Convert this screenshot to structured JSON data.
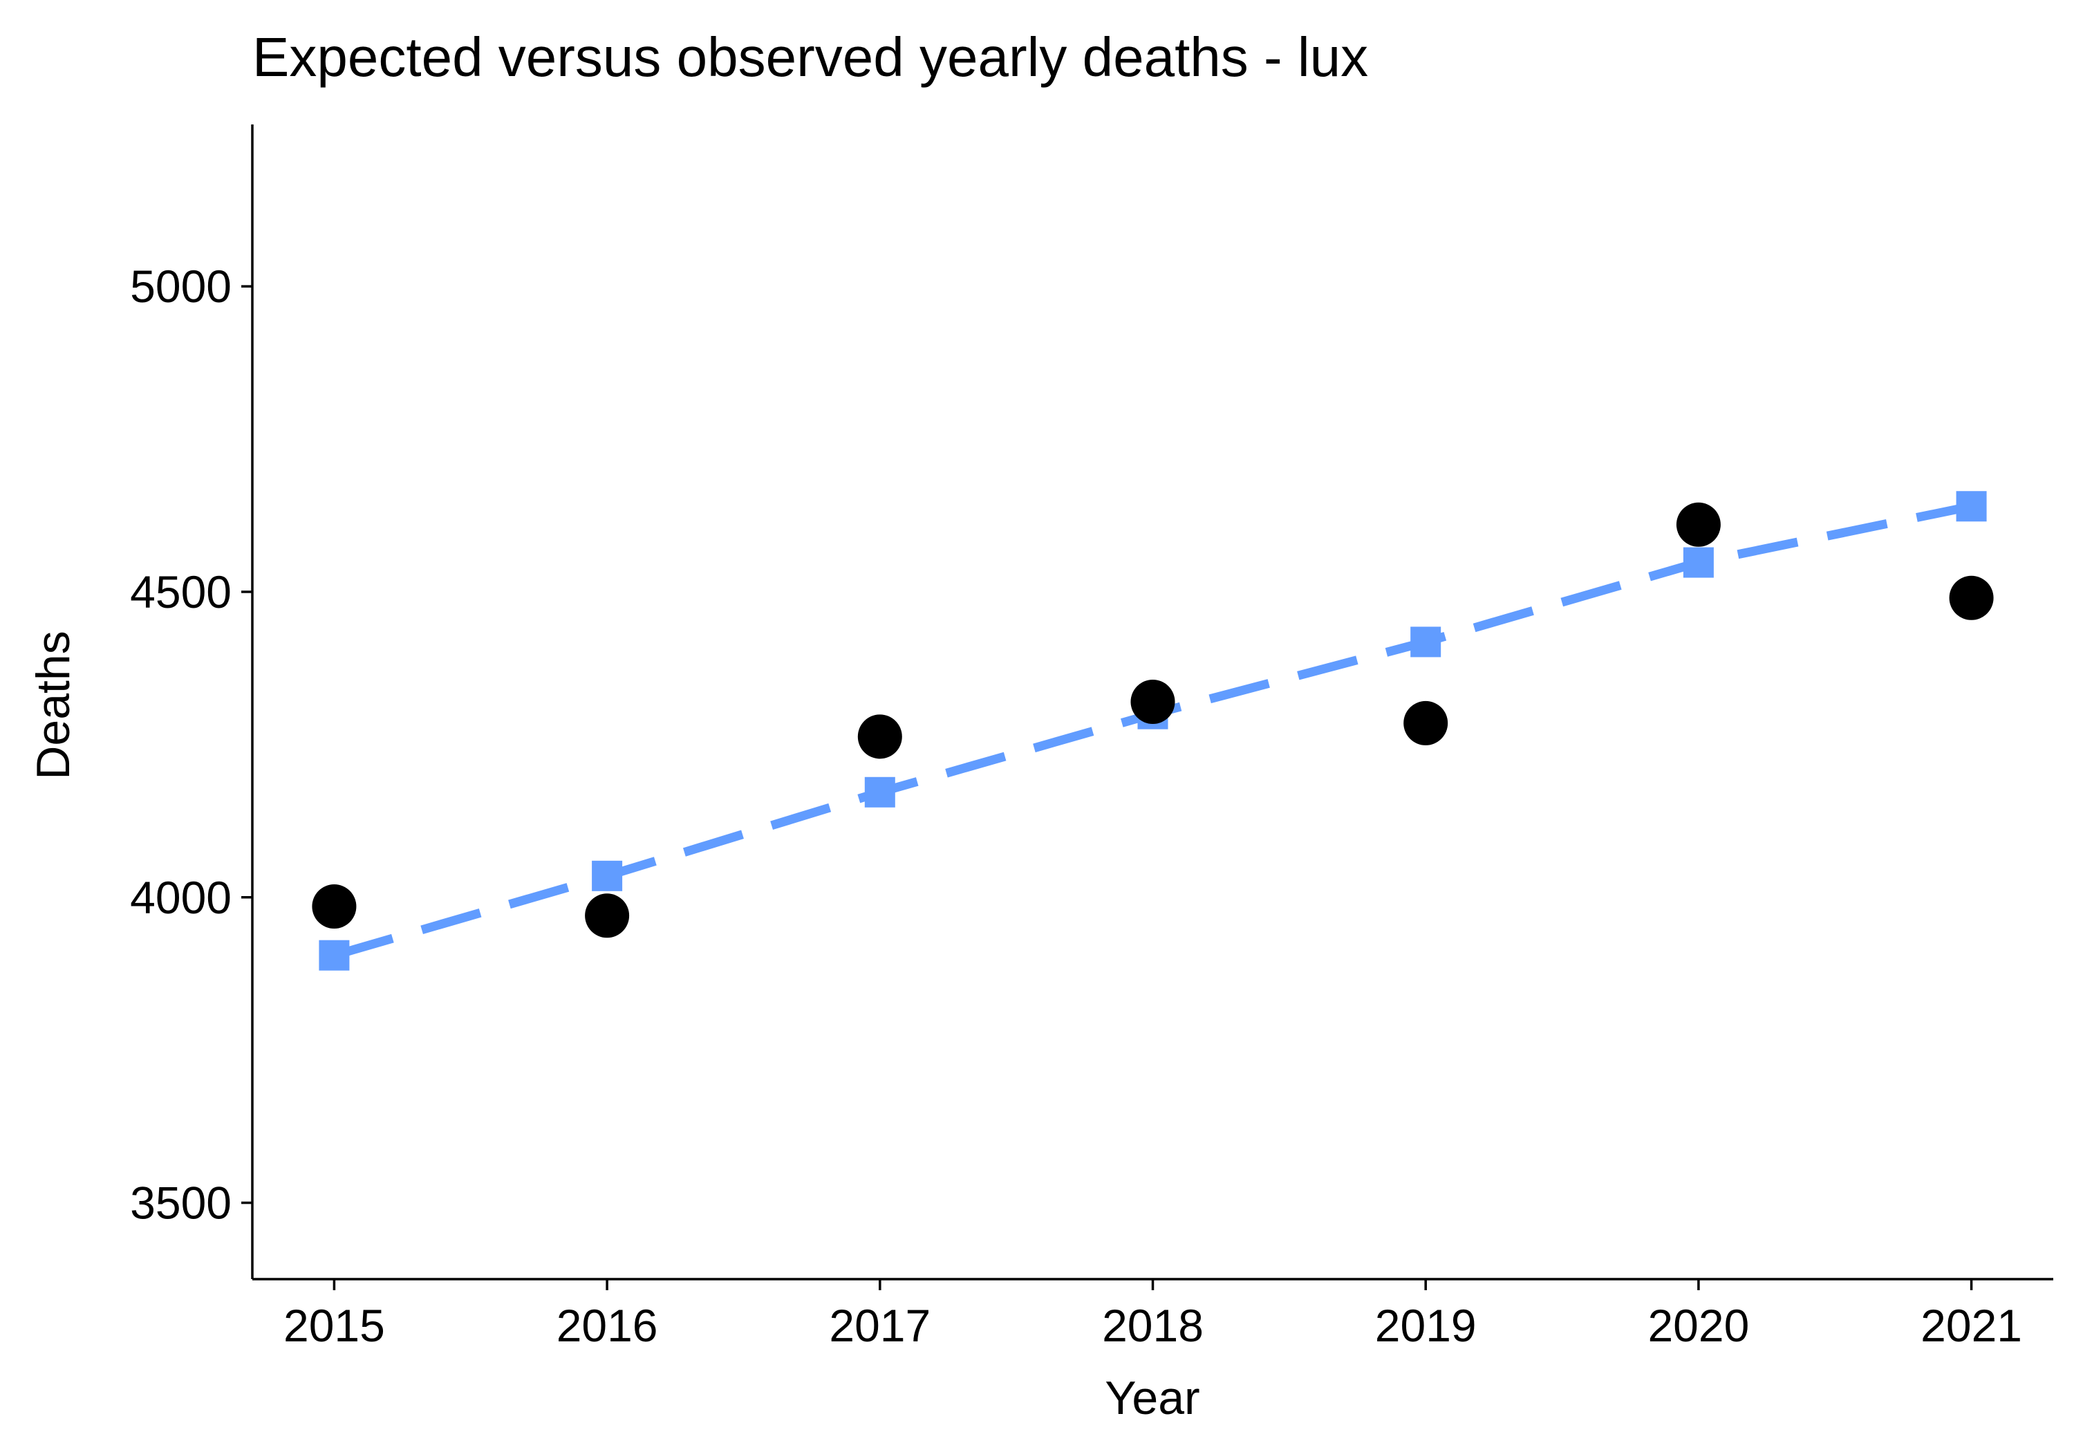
{
  "chart_data": {
    "type": "line",
    "title": "Expected versus observed yearly deaths - lux",
    "xlabel": "Year",
    "ylabel": "Deaths",
    "x": [
      2015,
      2016,
      2017,
      2018,
      2019,
      2020,
      2021
    ],
    "x_tick_labels": [
      "2015",
      "2016",
      "2017",
      "2018",
      "2019",
      "2020",
      "2021"
    ],
    "y_ticks": [
      3500,
      4000,
      4500,
      5000
    ],
    "y_tick_labels": [
      "3500",
      "4000",
      "4500",
      "5000"
    ],
    "ylim": [
      3375,
      5265
    ],
    "grid": false,
    "legend": "none",
    "series": [
      {
        "style": "dashed line with square markers",
        "color": "#619CFF",
        "values": [
          3905,
          4035,
          4172,
          4300,
          4418,
          4548,
          4640
        ]
      },
      {
        "style": "circle markers",
        "color": "#000000",
        "values": [
          3985,
          3970,
          4263,
          4320,
          4285,
          4610,
          4490
        ]
      }
    ]
  }
}
